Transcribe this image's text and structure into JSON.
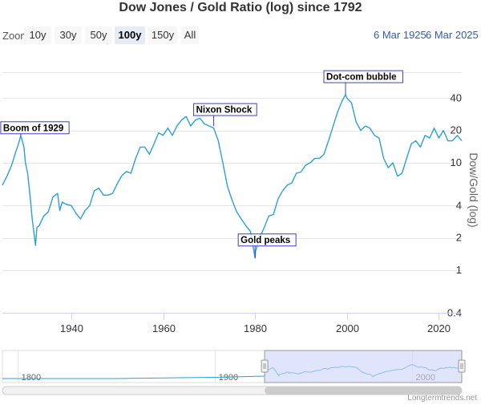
{
  "title": "Dow Jones / Gold Ratio (log) since 1792",
  "range_selector": {
    "zoom_label": "Zoom",
    "buttons": [
      "10y",
      "30y",
      "50y",
      "100y",
      "150y",
      "All"
    ],
    "selected": "100y",
    "from_date": "6 Mar 1925",
    "to_date": "6 Mar 2025"
  },
  "credits": "Longtermtrends.net",
  "colors": {
    "line": "#2b9fd9",
    "nav_fill": "#ccd4fa",
    "annotation_border": "#4040c0",
    "date_text": "#335cad"
  },
  "chart_data": {
    "type": "line",
    "title": "Dow Jones / Gold Ratio (log) since 1792",
    "ylabel": "Dow/Gold (log)",
    "xlabel": "",
    "y_scale": "log",
    "xlim": [
      1925,
      2025
    ],
    "ylim": [
      0.4,
      70
    ],
    "x_ticks": [
      1940,
      1960,
      1980,
      2000,
      2020
    ],
    "y_ticks": [
      0.4,
      1,
      2,
      4,
      10,
      20,
      40
    ],
    "series": [
      {
        "name": "Dow/Gold",
        "x": [
          1925,
          1926,
          1927,
          1928,
          1928.5,
          1929,
          1929.7,
          1930,
          1930.5,
          1931,
          1931.5,
          1932.2,
          1932.5,
          1933,
          1934,
          1935,
          1936,
          1937,
          1937.5,
          1938,
          1939,
          1940,
          1941,
          1942,
          1943,
          1944,
          1945,
          1946,
          1947,
          1948,
          1949,
          1950,
          1951,
          1952,
          1953,
          1954,
          1955,
          1956,
          1957,
          1958,
          1959,
          1960,
          1961,
          1962,
          1963,
          1964,
          1965,
          1966,
          1967,
          1968,
          1969,
          1970,
          1971,
          1972,
          1973,
          1974,
          1975,
          1976,
          1977,
          1978,
          1979,
          1980,
          1980.1,
          1981,
          1982,
          1983,
          1984,
          1985,
          1986,
          1987,
          1988,
          1989,
          1990,
          1991,
          1992,
          1993,
          1994,
          1995,
          1996,
          1997,
          1998,
          1999,
          1999.7,
          2000,
          2001,
          2002,
          2003,
          2004,
          2005,
          2006,
          2007,
          2008,
          2009,
          2010,
          2011,
          2012,
          2013,
          2014,
          2015,
          2016,
          2017,
          2018,
          2019,
          2020,
          2021,
          2022,
          2023,
          2024,
          2025
        ],
        "values": [
          6.2,
          7.5,
          9.5,
          13,
          15,
          18,
          14,
          10,
          8,
          5,
          3,
          1.7,
          2.5,
          2.6,
          3.2,
          3.5,
          4.8,
          5.2,
          3.6,
          4.3,
          4.1,
          4.0,
          3.4,
          3.0,
          3.6,
          4.0,
          5.5,
          5.8,
          5.0,
          5.0,
          5.2,
          6.4,
          7.6,
          8.3,
          8.0,
          11,
          14,
          14,
          12,
          15,
          19,
          18,
          21,
          18,
          22,
          25,
          27,
          22,
          25,
          26,
          23,
          22,
          21,
          16,
          10,
          6,
          4.5,
          3.5,
          3.0,
          2.6,
          2.3,
          1.3,
          1.5,
          2.0,
          2.5,
          3.2,
          3.3,
          4.6,
          5.5,
          6.2,
          6.5,
          8.0,
          8.2,
          9.5,
          10,
          11,
          11,
          12,
          16,
          22,
          30,
          38,
          43,
          40,
          36,
          24,
          20,
          22,
          21,
          18,
          17,
          11,
          9,
          10,
          7.5,
          8,
          11,
          15,
          16,
          14,
          18,
          17,
          21,
          17,
          20,
          16,
          16,
          18,
          16
        ]
      }
    ],
    "annotations": [
      {
        "label": "Boom of 1929",
        "x": 1929,
        "y": 18
      },
      {
        "label": "Nixon Shock",
        "x": 1971,
        "y": 22
      },
      {
        "label": "Gold peaks",
        "x": 1980,
        "y": 1.3
      },
      {
        "label": "Dot-com bubble",
        "x": 1999.7,
        "y": 43
      }
    ],
    "navigator": {
      "x_ticks": [
        1800,
        1900,
        2000
      ],
      "range": [
        1792,
        2025
      ],
      "selected_range": [
        1925,
        2025
      ]
    }
  }
}
